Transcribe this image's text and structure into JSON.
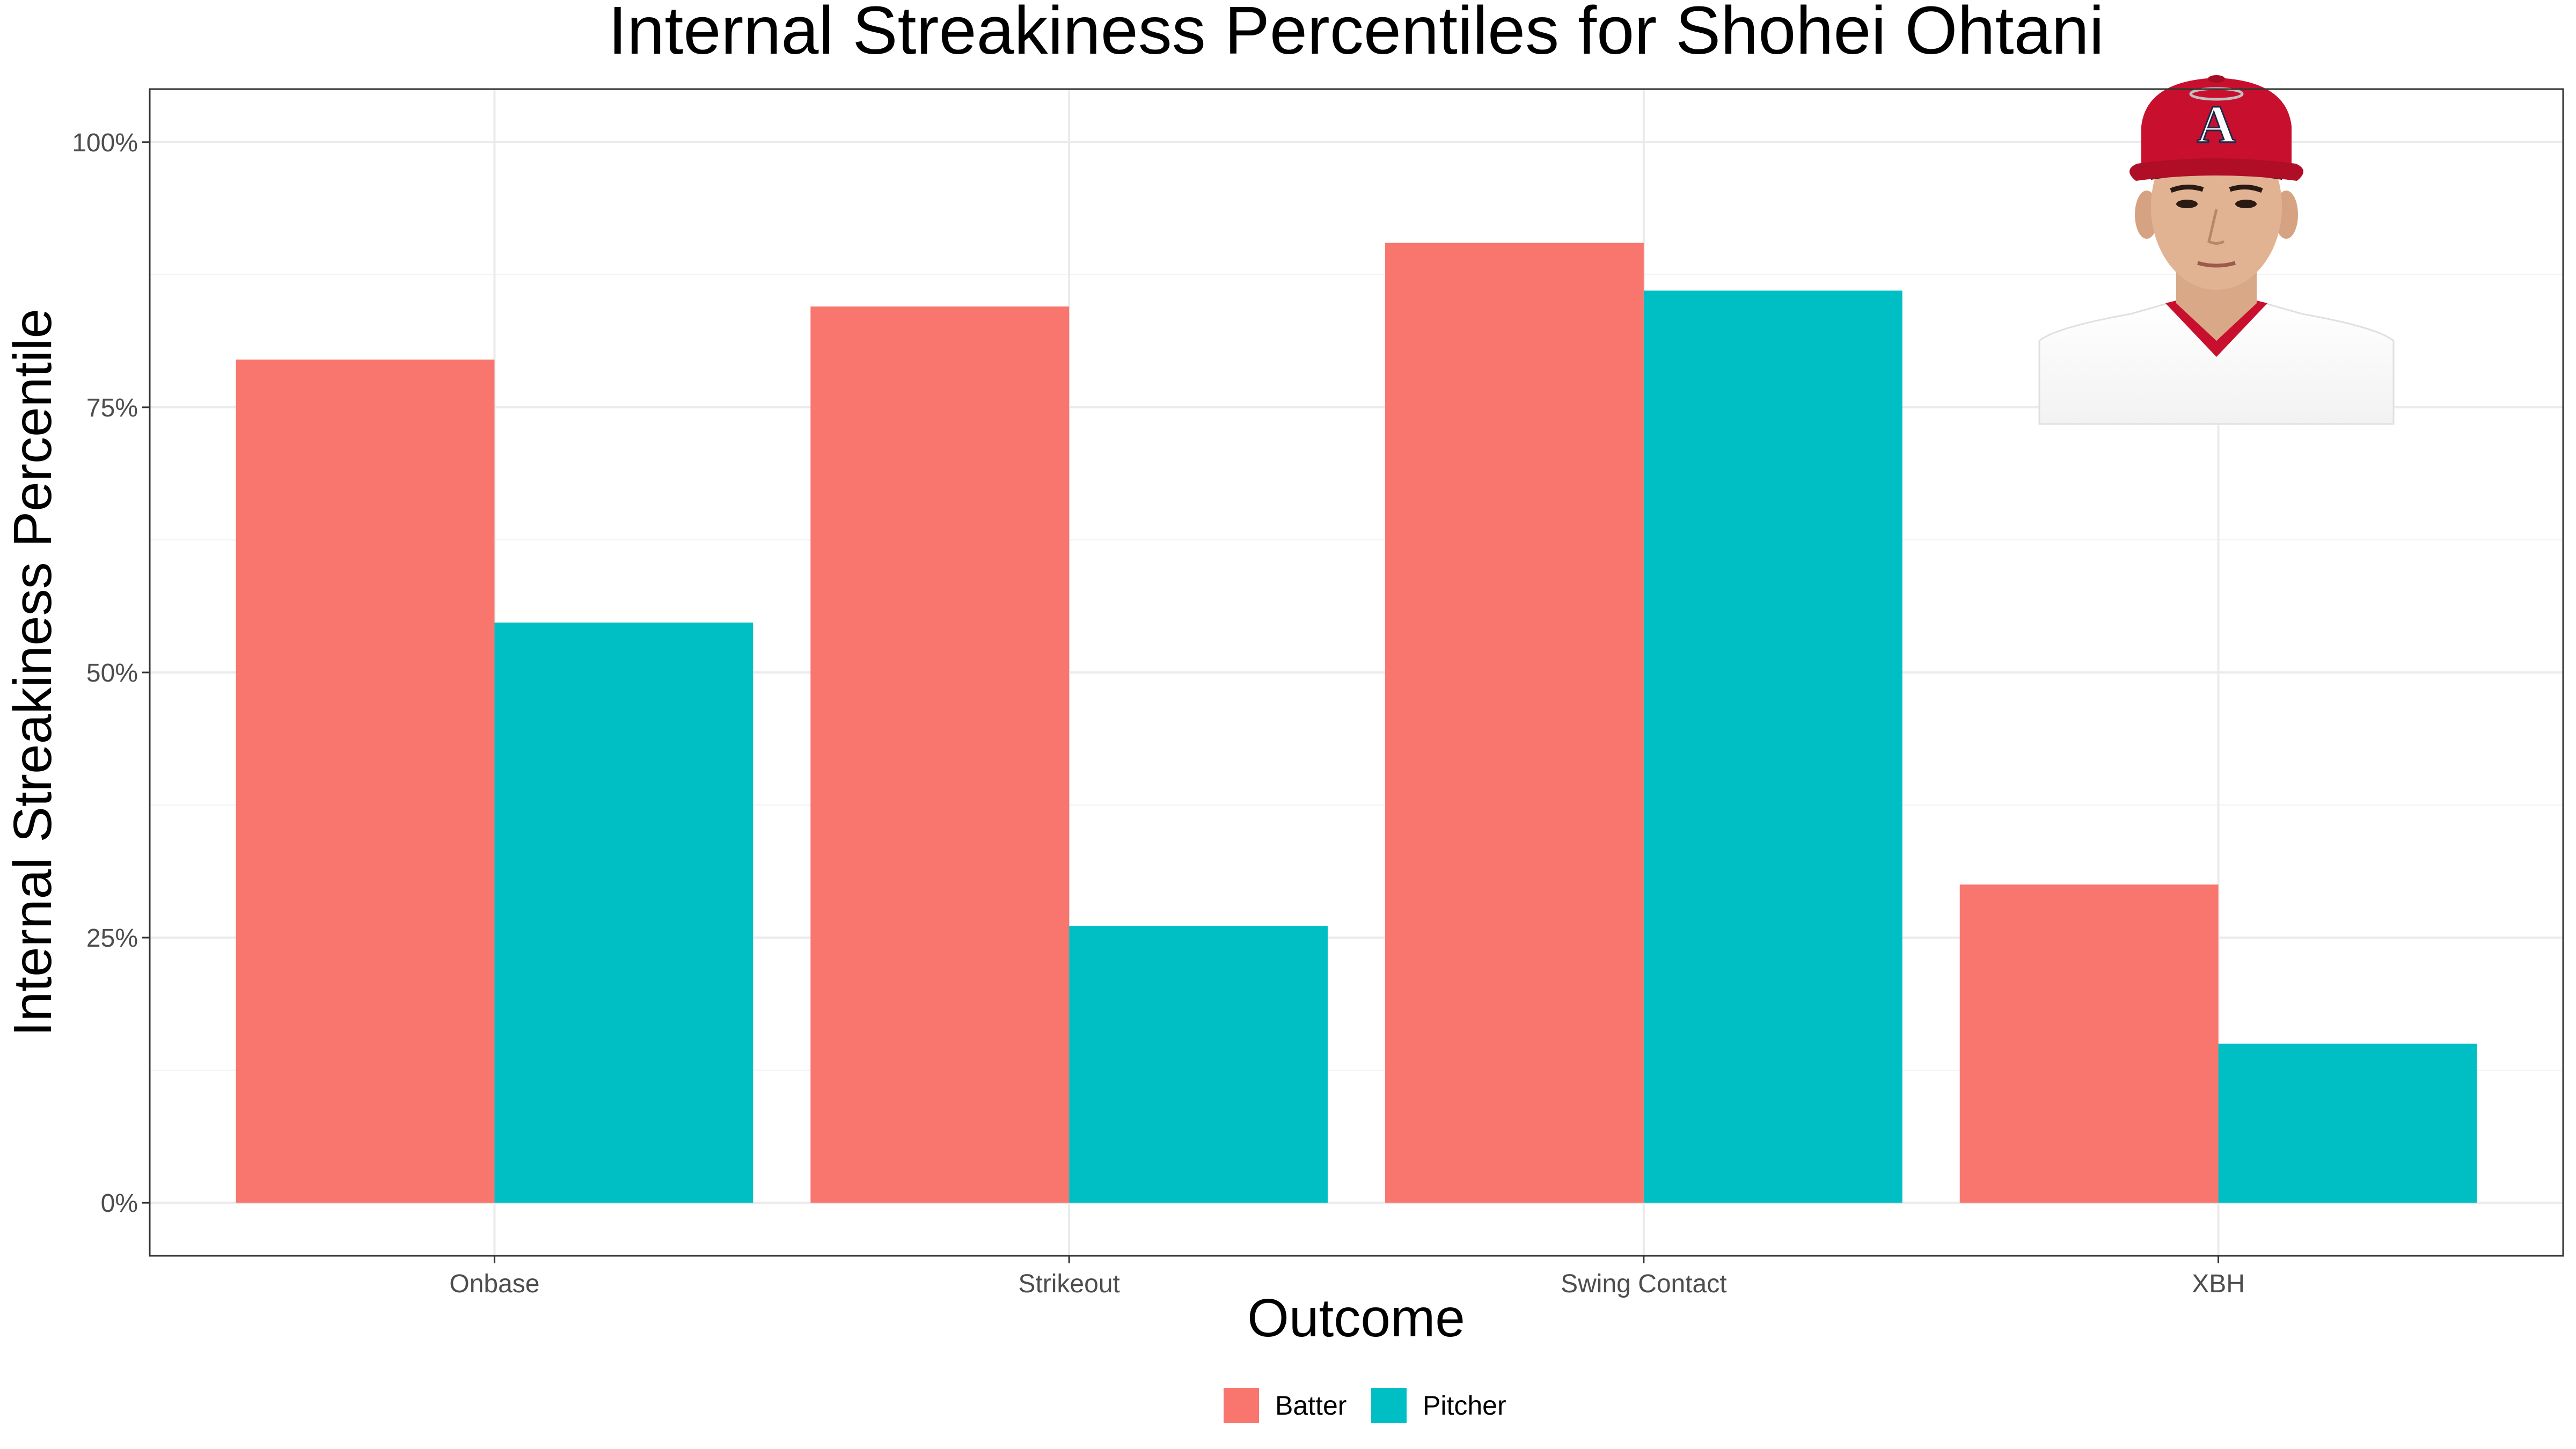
{
  "chart_data": {
    "type": "bar",
    "title": "Internal Streakiness Percentiles for Shohei Ohtani",
    "xlabel": "Outcome",
    "ylabel": "Internal Streakiness Percentile",
    "categories": [
      "Onbase",
      "Strikeout",
      "Swing Contact",
      "XBH"
    ],
    "series": [
      {
        "name": "Batter",
        "color": "#F8766D",
        "values": [
          79.5,
          84.5,
          90.5,
          30.0
        ]
      },
      {
        "name": "Pitcher",
        "color": "#00BFC4",
        "values": [
          54.7,
          26.1,
          86.0,
          15.0
        ]
      }
    ],
    "ylim": [
      -5,
      105
    ],
    "yticks": [
      0,
      25,
      50,
      75,
      100
    ],
    "ytick_labels": [
      "0%",
      "25%",
      "50%",
      "75%",
      "100%"
    ],
    "grid": true,
    "legend_position": "bottom"
  },
  "photo": {
    "subject": "player-headshot-icon",
    "cap_color": "#C8102E",
    "logo_letter": "A"
  }
}
